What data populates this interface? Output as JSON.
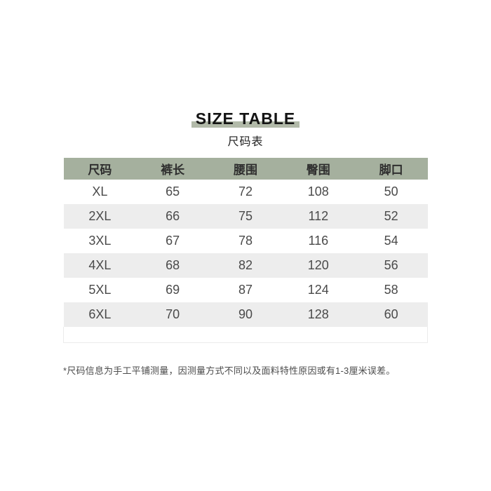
{
  "page": {
    "background": "#ffffff"
  },
  "header": {
    "title": "SIZE TABLE",
    "subtitle": "尺码表",
    "accent_bar_color": "#b2baa9"
  },
  "chart_data": {
    "type": "table",
    "title": "SIZE TABLE",
    "subtitle": "尺码表",
    "columns": [
      "尺码",
      "裤长",
      "腰围",
      "臀围",
      "脚口"
    ],
    "rows": [
      [
        "XL",
        "65",
        "72",
        "108",
        "50"
      ],
      [
        "2XL",
        "66",
        "75",
        "112",
        "52"
      ],
      [
        "3XL",
        "67",
        "78",
        "116",
        "54"
      ],
      [
        "4XL",
        "68",
        "82",
        "120",
        "56"
      ],
      [
        "5XL",
        "69",
        "87",
        "124",
        "58"
      ],
      [
        "6XL",
        "70",
        "90",
        "128",
        "60"
      ]
    ],
    "header_bg": "#a5b09e",
    "alt_row_bg": "#ededed",
    "layout_hints": {
      "striped": true,
      "header_style": "sage-green-fill",
      "trailing_empty_row": true
    }
  },
  "footnote": {
    "text": "*尺码信息为手工平铺测量，因测量方式不同以及面料特性原因或有1-3厘米误差。"
  }
}
